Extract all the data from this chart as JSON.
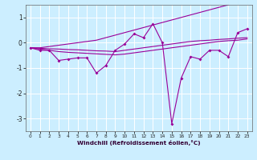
{
  "x": [
    0,
    1,
    2,
    3,
    4,
    5,
    6,
    7,
    8,
    9,
    10,
    11,
    12,
    13,
    14,
    15,
    16,
    17,
    18,
    19,
    20,
    21,
    22,
    23
  ],
  "windchill_line": [
    -0.2,
    -0.3,
    -0.3,
    -0.7,
    -0.65,
    -0.6,
    -0.6,
    -1.2,
    -0.9,
    -0.3,
    -0.05,
    0.35,
    0.2,
    0.75,
    0.0,
    -3.2,
    -1.4,
    -0.55,
    -0.65,
    -0.3,
    -0.3,
    -0.55,
    0.4,
    0.55
  ],
  "upper_envelope": [
    -0.2,
    -0.2,
    -0.15,
    -0.1,
    -0.05,
    0.0,
    0.05,
    0.1,
    0.2,
    0.3,
    0.4,
    0.5,
    0.6,
    0.7,
    0.8,
    0.9,
    1.0,
    1.1,
    1.2,
    1.3,
    1.4,
    1.5,
    1.6,
    1.7
  ],
  "lower_envelope": [
    -0.2,
    -0.25,
    -0.3,
    -0.35,
    -0.38,
    -0.4,
    -0.42,
    -0.44,
    -0.46,
    -0.48,
    -0.45,
    -0.4,
    -0.35,
    -0.3,
    -0.25,
    -0.2,
    -0.15,
    -0.1,
    -0.05,
    0.0,
    0.05,
    0.08,
    0.1,
    0.15
  ],
  "middle_line": [
    -0.2,
    -0.22,
    -0.24,
    -0.25,
    -0.27,
    -0.28,
    -0.3,
    -0.32,
    -0.33,
    -0.35,
    -0.3,
    -0.25,
    -0.2,
    -0.15,
    -0.1,
    -0.05,
    0.0,
    0.05,
    0.08,
    0.1,
    0.13,
    0.15,
    0.18,
    0.2
  ],
  "line_color": "#990099",
  "background_color": "#cceeff",
  "grid_color": "#ffffff",
  "xlabel": "Windchill (Refroidissement éolien,°C)",
  "ylim": [
    -3.5,
    1.5
  ],
  "xlim": [
    -0.5,
    23.5
  ],
  "yticks": [
    -3,
    -2,
    -1,
    0,
    1
  ],
  "xticks": [
    0,
    1,
    2,
    3,
    4,
    5,
    6,
    7,
    8,
    9,
    10,
    11,
    12,
    13,
    14,
    15,
    16,
    17,
    18,
    19,
    20,
    21,
    22,
    23
  ]
}
